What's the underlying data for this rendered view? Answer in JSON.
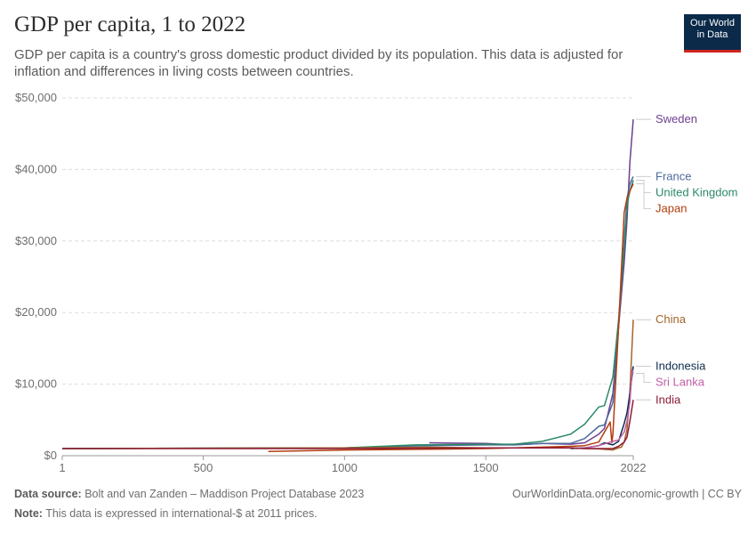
{
  "header": {
    "title": "GDP per capita, 1 to 2022",
    "subtitle": "GDP per capita is a country's gross domestic product divided by its population. This data is adjusted for inflation and differences in living costs between countries.",
    "logo_line1": "Our World",
    "logo_line2": "in Data"
  },
  "footer": {
    "source_label": "Data source:",
    "source_text": "Bolt and van Zanden – Maddison Project Database 2023",
    "note_label": "Note:",
    "note_text": "This data is expressed in international-$ at 2011 prices.",
    "link_text": "OurWorldinData.org/economic-growth | CC BY"
  },
  "chart_data": {
    "type": "line",
    "title": "GDP per capita, 1 to 2022",
    "xlabel": "",
    "ylabel": "",
    "xlim": [
      1,
      2022
    ],
    "ylim": [
      0,
      50000
    ],
    "x_ticks": [
      1,
      500,
      1000,
      1500,
      2022
    ],
    "y_ticks": [
      0,
      10000,
      20000,
      30000,
      40000,
      50000
    ],
    "y_tick_labels": [
      "$0",
      "$10,000",
      "$20,000",
      "$30,000",
      "$40,000",
      "$50,000"
    ],
    "grid": "horizontal dashed",
    "series": [
      {
        "name": "Sweden",
        "color": "#6d3e91",
        "x": [
          1300,
          1500,
          1600,
          1700,
          1800,
          1850,
          1900,
          1920,
          1950,
          1970,
          1990,
          2000,
          2010,
          2022
        ],
        "values": [
          1800,
          1700,
          1500,
          1700,
          1600,
          1800,
          3000,
          3800,
          8700,
          18000,
          27000,
          33000,
          41000,
          47000
        ]
      },
      {
        "name": "France",
        "color": "#4c6a9c",
        "x": [
          1,
          1000,
          1280,
          1500,
          1600,
          1700,
          1800,
          1850,
          1900,
          1920,
          1950,
          1970,
          1990,
          2000,
          2010,
          2022
        ],
        "values": [
          1000,
          1100,
          1400,
          1500,
          1500,
          1700,
          1700,
          2400,
          4100,
          4300,
          7400,
          18000,
          30000,
          36000,
          38000,
          39000
        ]
      },
      {
        "name": "United Kingdom",
        "color": "#2a8a66",
        "x": [
          1,
          1000,
          1250,
          1500,
          1600,
          1700,
          1800,
          1850,
          1900,
          1920,
          1950,
          1970,
          1990,
          2000,
          2010,
          2022
        ],
        "values": [
          1000,
          1100,
          1500,
          1600,
          1600,
          2000,
          3000,
          4400,
          6800,
          7000,
          11000,
          19000,
          29000,
          35000,
          37000,
          38500
        ]
      },
      {
        "name": "Japan",
        "color": "#b33c0c",
        "x": [
          730,
          1000,
          1300,
          1500,
          1600,
          1700,
          1800,
          1850,
          1900,
          1940,
          1946,
          1950,
          1970,
          1990,
          2000,
          2010,
          2022
        ],
        "values": [
          600,
          800,
          900,
          1000,
          1100,
          1200,
          1300,
          1400,
          1900,
          4700,
          1800,
          3000,
          18000,
          34000,
          36000,
          37000,
          38000
        ]
      },
      {
        "name": "China",
        "color": "#a2652b",
        "x": [
          1,
          1000,
          1300,
          1500,
          1600,
          1700,
          1800,
          1850,
          1900,
          1950,
          1970,
          1980,
          1990,
          2000,
          2010,
          2022
        ],
        "values": [
          1000,
          1100,
          1200,
          1100,
          1100,
          1100,
          1100,
          1000,
          950,
          800,
          1100,
          1200,
          1900,
          3700,
          8900,
          19000
        ]
      },
      {
        "name": "Indonesia",
        "color": "#0d2a4f",
        "x": [
          1800,
          1850,
          1900,
          1920,
          1950,
          1970,
          1990,
          2000,
          2010,
          2022
        ],
        "values": [
          1000,
          1100,
          1400,
          1800,
          1500,
          2000,
          4500,
          6000,
          8700,
          12500
        ]
      },
      {
        "name": "Sri Lanka",
        "color": "#c15ea5",
        "x": [
          1820,
          1850,
          1900,
          1950,
          1970,
          1990,
          2000,
          2010,
          2018,
          2022
        ],
        "values": [
          1000,
          1100,
          1400,
          2000,
          2200,
          3300,
          4800,
          7500,
          12000,
          11500
        ]
      },
      {
        "name": "India",
        "color": "#8e1b36",
        "x": [
          1,
          1000,
          1500,
          1600,
          1700,
          1800,
          1850,
          1900,
          1950,
          1970,
          1990,
          2000,
          2010,
          2022
        ],
        "values": [
          1000,
          1000,
          1100,
          1100,
          1100,
          1100,
          1000,
          1000,
          1000,
          1300,
          1900,
          2600,
          4800,
          7800
        ]
      }
    ]
  }
}
